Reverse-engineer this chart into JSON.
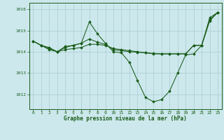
{
  "title": "Graphe pression niveau de la mer (hPa)",
  "background_color": "#cce8ec",
  "grid_color": "#aaccd4",
  "line_color": "#1a5c1a",
  "xlim": [
    -0.5,
    23.5
  ],
  "ylim": [
    1011.3,
    1016.3
  ],
  "yticks": [
    1012,
    1013,
    1014,
    1015,
    1016
  ],
  "xticks": [
    0,
    1,
    2,
    3,
    4,
    5,
    6,
    7,
    8,
    9,
    10,
    11,
    12,
    13,
    14,
    15,
    16,
    17,
    18,
    19,
    20,
    21,
    22,
    23
  ],
  "series1_x": [
    0,
    1,
    2,
    3,
    4,
    5,
    6,
    7,
    8,
    9,
    10,
    11,
    12,
    13,
    14,
    15,
    16,
    17,
    18,
    19,
    20,
    21,
    22,
    23
  ],
  "series1_y": [
    1014.5,
    1014.3,
    1014.15,
    1014.0,
    1014.2,
    1014.3,
    1014.4,
    1015.4,
    1014.85,
    1014.4,
    1014.0,
    1013.95,
    1013.5,
    1012.65,
    1011.85,
    1011.65,
    1011.75,
    1012.15,
    1013.0,
    1013.85,
    1013.9,
    1014.3,
    1015.6,
    1015.85
  ],
  "series2_x": [
    0,
    1,
    2,
    3,
    4,
    5,
    6,
    7,
    8,
    9,
    10,
    11,
    12,
    13,
    14,
    15,
    16,
    17,
    18,
    19,
    20,
    21,
    22,
    23
  ],
  "series2_y": [
    1014.5,
    1014.3,
    1014.1,
    1014.0,
    1014.1,
    1014.15,
    1014.2,
    1014.35,
    1014.35,
    1014.3,
    1014.15,
    1014.1,
    1014.05,
    1014.0,
    1013.95,
    1013.9,
    1013.9,
    1013.9,
    1013.9,
    1013.9,
    1014.3,
    1014.3,
    1015.5,
    1015.85
  ],
  "series3_x": [
    0,
    1,
    2,
    3,
    4,
    5,
    6,
    7,
    8,
    9,
    10,
    11,
    12,
    13,
    14,
    15,
    16,
    17,
    18,
    19,
    20,
    21,
    22,
    23
  ],
  "series3_y": [
    1014.5,
    1014.3,
    1014.2,
    1014.0,
    1014.25,
    1014.3,
    1014.4,
    1014.6,
    1014.45,
    1014.35,
    1014.1,
    1014.05,
    1014.0,
    1013.98,
    1013.95,
    1013.92,
    1013.9,
    1013.9,
    1013.9,
    1013.9,
    1014.3,
    1014.3,
    1015.45,
    1015.85
  ]
}
